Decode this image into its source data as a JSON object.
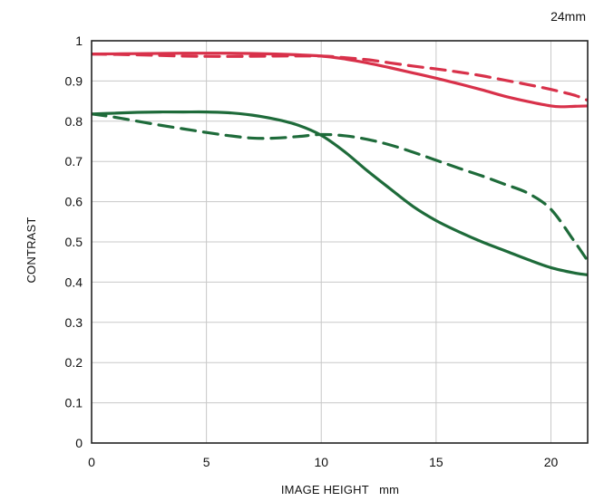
{
  "chart_data": {
    "type": "line",
    "title": "24mm",
    "xlabel": "IMAGE HEIGHT   mm",
    "ylabel": "CONTRAST",
    "xlim": [
      0,
      21.6
    ],
    "ylim": [
      0,
      1
    ],
    "x_ticks": [
      0,
      5,
      10,
      15,
      20
    ],
    "y_ticks": [
      0,
      0.1,
      0.2,
      0.3,
      0.4,
      0.5,
      0.6,
      0.7,
      0.8,
      0.9,
      1
    ],
    "y_tick_labels": [
      "0",
      "0.1",
      "0.2",
      "0.3",
      "0.4",
      "0.5",
      "0.6",
      "0.7",
      "0.8",
      "0.9",
      "1"
    ],
    "x_tick_labels": [
      "0",
      "5",
      "10",
      "15",
      "20"
    ],
    "grid": true,
    "series": [
      {
        "color": "#d8314a",
        "dash": "solid",
        "x": [
          0,
          2,
          4,
          6,
          8,
          10,
          11,
          12,
          13,
          14,
          15,
          16,
          17,
          18,
          19,
          20,
          20.5,
          21,
          21.6
        ],
        "y": [
          0.967,
          0.968,
          0.969,
          0.969,
          0.967,
          0.962,
          0.955,
          0.945,
          0.933,
          0.92,
          0.907,
          0.893,
          0.878,
          0.862,
          0.849,
          0.838,
          0.836,
          0.837,
          0.838
        ]
      },
      {
        "color": "#d8314a",
        "dash": "dashed",
        "x": [
          0,
          2,
          4,
          6,
          8,
          10,
          11,
          12,
          13,
          14,
          15,
          16,
          17,
          18,
          19,
          20,
          21,
          21.6
        ],
        "y": [
          0.967,
          0.965,
          0.962,
          0.961,
          0.962,
          0.962,
          0.958,
          0.953,
          0.945,
          0.937,
          0.93,
          0.922,
          0.913,
          0.902,
          0.891,
          0.879,
          0.865,
          0.852
        ]
      },
      {
        "color": "#1e6b3a",
        "dash": "solid",
        "x": [
          0,
          1,
          2,
          3,
          4,
          5,
          6,
          7,
          8,
          9,
          10,
          11,
          12,
          13,
          14,
          15,
          16,
          17,
          18,
          19,
          20,
          21,
          21.6
        ],
        "y": [
          0.818,
          0.82,
          0.822,
          0.823,
          0.823,
          0.823,
          0.821,
          0.815,
          0.805,
          0.79,
          0.765,
          0.725,
          0.677,
          0.632,
          0.588,
          0.553,
          0.525,
          0.5,
          0.478,
          0.456,
          0.436,
          0.423,
          0.418
        ]
      },
      {
        "color": "#1e6b3a",
        "dash": "dashed",
        "x": [
          0,
          1,
          2,
          3,
          4,
          5,
          6,
          7,
          8,
          9,
          10,
          11,
          12,
          13,
          14,
          15,
          16,
          17,
          18,
          19,
          20,
          21,
          21.6
        ],
        "y": [
          0.818,
          0.81,
          0.8,
          0.79,
          0.781,
          0.772,
          0.764,
          0.758,
          0.758,
          0.762,
          0.767,
          0.764,
          0.755,
          0.741,
          0.723,
          0.703,
          0.683,
          0.664,
          0.643,
          0.621,
          0.581,
          0.503,
          0.453
        ]
      }
    ]
  }
}
